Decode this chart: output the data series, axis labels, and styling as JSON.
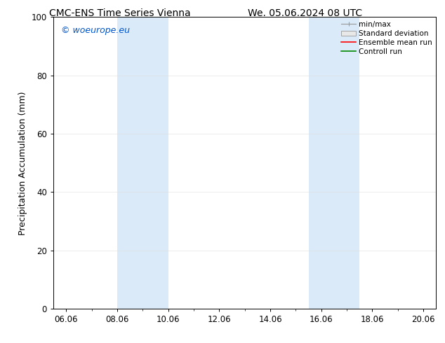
{
  "title_left": "CMC-ENS Time Series Vienna",
  "title_right": "We. 05.06.2024 08 UTC",
  "ylabel": "Precipitation Accumulation (mm)",
  "x_tick_labels": [
    "06.06",
    "08.06",
    "10.06",
    "12.06",
    "14.06",
    "16.06",
    "18.06",
    "20.06"
  ],
  "x_tick_vals": [
    6,
    8,
    10,
    12,
    14,
    16,
    18,
    20
  ],
  "xlim": [
    5.5,
    20.5
  ],
  "ylim": [
    0,
    100
  ],
  "yticks": [
    0,
    20,
    40,
    60,
    80,
    100
  ],
  "watermark": "© woeurope.eu",
  "watermark_color": "#0055cc",
  "shaded_bands": [
    {
      "x_start": 8.0,
      "x_end": 10.0,
      "color": "#daeaf8"
    },
    {
      "x_start": 15.5,
      "x_end": 17.5,
      "color": "#daeaf8"
    }
  ],
  "legend_items": [
    {
      "label": "min/max",
      "type": "minmax"
    },
    {
      "label": "Standard deviation",
      "type": "stddev"
    },
    {
      "label": "Ensemble mean run",
      "type": "line",
      "color": "#ff0000"
    },
    {
      "label": "Controll run",
      "type": "line",
      "color": "#008800"
    }
  ],
  "background_color": "#ffffff",
  "tick_label_fontsize": 8.5,
  "axis_label_fontsize": 9,
  "title_fontsize": 10,
  "legend_fontsize": 7.5,
  "watermark_fontsize": 9
}
